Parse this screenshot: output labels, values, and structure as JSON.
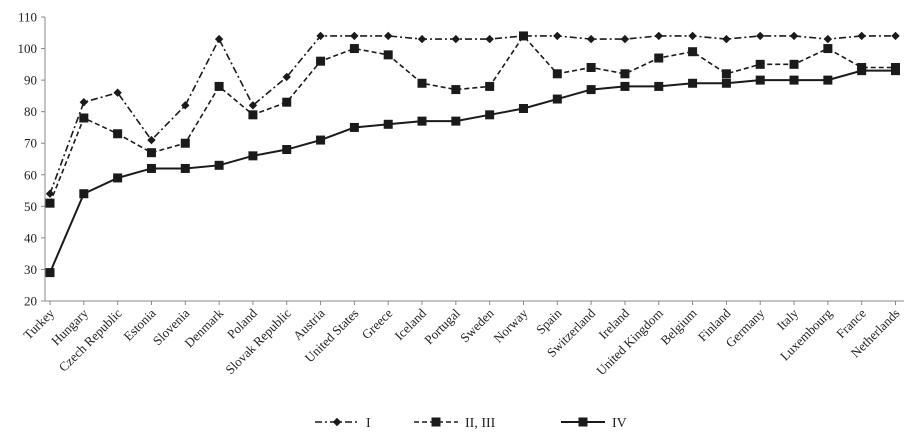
{
  "chart_data": {
    "type": "line",
    "title": "",
    "xlabel": "",
    "ylabel": "",
    "ylim": [
      20,
      110
    ],
    "yticks": [
      20,
      30,
      40,
      50,
      60,
      70,
      80,
      90,
      100,
      110
    ],
    "grid": false,
    "legend_position": "bottom",
    "categories": [
      "Turkey",
      "Hungary",
      "Czech Republic",
      "Estonia",
      "Slovenia",
      "Denmark",
      "Poland",
      "Slovak Republic",
      "Austria",
      "United States",
      "Greece",
      "Iceland",
      "Portugal",
      "Sweden",
      "Norway",
      "Spain",
      "Switzerland",
      "Ireland",
      "United Kingdom",
      "Belgium",
      "Finland",
      "Germany",
      "Italy",
      "Luxembourg",
      "France",
      "Netherlands"
    ],
    "series": [
      {
        "name": "I",
        "line_style": "dash-dot",
        "marker": "diamond",
        "color": "#1a1a1a",
        "values": [
          54,
          83,
          86,
          71,
          82,
          103,
          82,
          91,
          104,
          104,
          104,
          103,
          103,
          103,
          104,
          104,
          103,
          103,
          104,
          104,
          103,
          104,
          104,
          103,
          104,
          104
        ]
      },
      {
        "name": "II, III",
        "line_style": "dashed",
        "marker": "square",
        "color": "#1a1a1a",
        "values": [
          51,
          78,
          73,
          67,
          70,
          88,
          79,
          83,
          96,
          100,
          98,
          89,
          87,
          88,
          104,
          92,
          94,
          92,
          97,
          99,
          92,
          95,
          95,
          100,
          94,
          94
        ]
      },
      {
        "name": "IV",
        "line_style": "solid",
        "marker": "square",
        "color": "#1a1a1a",
        "values": [
          29,
          54,
          59,
          62,
          62,
          63,
          66,
          68,
          71,
          75,
          76,
          77,
          77,
          79,
          81,
          84,
          87,
          88,
          88,
          89,
          89,
          90,
          90,
          90,
          93,
          93
        ]
      }
    ]
  }
}
